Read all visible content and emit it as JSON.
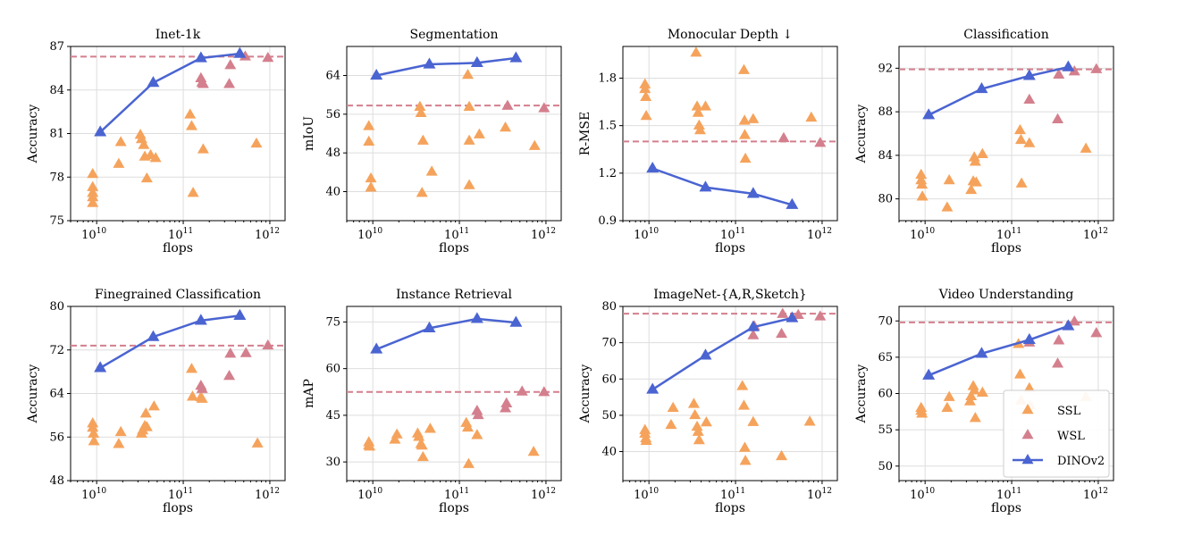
{
  "colors": {
    "ssl": "#f5a35c",
    "wsl": "#d47f8d",
    "dino": "#4a64d1",
    "baseline": "#d47f8d",
    "grid": "#dddddd"
  },
  "legend": {
    "entries": [
      "SSL",
      "WSL",
      "DINOv2"
    ],
    "placement": "lower-right of last panel"
  },
  "chart_data": [
    {
      "type": "scatter",
      "title": "Inet-1k",
      "xlabel": "flops",
      "ylabel": "Accuracy",
      "xscale": "log",
      "xlim": [
        5000000000.0,
        1500000000000.0
      ],
      "ylim": [
        75,
        87
      ],
      "yticks": [
        75,
        78,
        81,
        84,
        87
      ],
      "ytick_labels": [
        "75",
        "78",
        "81",
        "84",
        "87"
      ],
      "baseline": 86.3,
      "dino": {
        "x": [
          11000000000.0,
          45000000000.0,
          160000000000.0,
          450000000000.0
        ],
        "y": [
          81.1,
          84.5,
          86.2,
          86.5
        ]
      },
      "ssl": {
        "x": [
          9000000000.0,
          9000000000.0,
          9000000000.0,
          9000000000.0,
          9000000000.0,
          18000000000.0,
          19000000000.0,
          32000000000.0,
          33000000000.0,
          35000000000.0,
          36000000000.0,
          38000000000.0,
          42000000000.0,
          48000000000.0,
          120000000000.0,
          125000000000.0,
          130000000000.0,
          170000000000.0,
          700000000000.0
        ],
        "y": [
          78.2,
          77.3,
          76.9,
          76.6,
          76.2,
          78.9,
          80.4,
          80.9,
          80.6,
          80.2,
          79.4,
          77.9,
          79.5,
          79.3,
          82.3,
          81.5,
          76.9,
          79.9,
          80.3
        ]
      },
      "wsl": {
        "x": [
          160000000000.0,
          165000000000.0,
          170000000000.0,
          340000000000.0,
          350000000000.0,
          520000000000.0,
          950000000000.0
        ],
        "y": [
          84.8,
          84.5,
          84.4,
          84.4,
          85.7,
          86.3,
          86.2
        ]
      }
    },
    {
      "type": "scatter",
      "title": "Segmentation",
      "xlabel": "flops",
      "ylabel": "mIoU",
      "xscale": "log",
      "xlim": [
        5000000000.0,
        1500000000000.0
      ],
      "ylim": [
        34,
        70
      ],
      "yticks": [
        40,
        48,
        56,
        64
      ],
      "ytick_labels": [
        "40",
        "48",
        "56",
        "64"
      ],
      "baseline": 57.8,
      "dino": {
        "x": [
          11000000000.0,
          45000000000.0,
          160000000000.0,
          450000000000.0
        ],
        "y": [
          64.0,
          66.3,
          66.6,
          67.6
        ]
      },
      "ssl": {
        "x": [
          9000000000.0,
          9000000000.0,
          9500000000.0,
          9500000000.0,
          35000000000.0,
          36000000000.0,
          38000000000.0,
          37000000000.0,
          48000000000.0,
          125000000000.0,
          130000000000.0,
          130000000000.0,
          130000000000.0,
          170000000000.0,
          340000000000.0,
          740000000000.0
        ],
        "y": [
          53.5,
          50.3,
          42.7,
          40.8,
          57.5,
          56.2,
          50.5,
          39.7,
          44.1,
          64.1,
          57.5,
          50.5,
          41.3,
          51.8,
          53.2,
          49.4
        ]
      },
      "wsl": {
        "x": [
          360000000000.0,
          950000000000.0
        ],
        "y": [
          57.7,
          57.2
        ]
      }
    },
    {
      "type": "scatter",
      "title": "Monocular Depth ↓",
      "xlabel": "flops",
      "ylabel": "R-MSE",
      "xscale": "log",
      "xlim": [
        5000000000.0,
        1500000000000.0
      ],
      "ylim": [
        0.9,
        2.0
      ],
      "yticks": [
        0.9,
        1.2,
        1.5,
        1.8
      ],
      "ytick_labels": [
        "0.9",
        "1.2",
        "1.5",
        "1.8"
      ],
      "baseline": 1.4,
      "dino": {
        "x": [
          11000000000.0,
          45000000000.0,
          160000000000.0,
          450000000000.0
        ],
        "y": [
          1.23,
          1.11,
          1.07,
          1.0
        ]
      },
      "ssl": {
        "x": [
          9000000000.0,
          9000000000.0,
          9200000000.0,
          9300000000.0,
          35000000000.0,
          36000000000.0,
          37000000000.0,
          38000000000.0,
          39000000000.0,
          45000000000.0,
          125000000000.0,
          127000000000.0,
          128000000000.0,
          130000000000.0,
          160000000000.0,
          750000000000.0
        ],
        "y": [
          1.76,
          1.73,
          1.68,
          1.56,
          1.96,
          1.62,
          1.58,
          1.5,
          1.47,
          1.62,
          1.85,
          1.53,
          1.44,
          1.29,
          1.54,
          1.55
        ]
      },
      "wsl": {
        "x": [
          360000000000.0,
          950000000000.0
        ],
        "y": [
          1.42,
          1.39
        ]
      }
    },
    {
      "type": "scatter",
      "title": "Classification",
      "xlabel": "flops",
      "ylabel": "Accuracy",
      "xscale": "log",
      "xlim": [
        5000000000.0,
        1500000000000.0
      ],
      "ylim": [
        78,
        94
      ],
      "yticks": [
        80,
        84,
        88,
        92
      ],
      "ytick_labels": [
        "80",
        "84",
        "88",
        "92"
      ],
      "baseline": 91.9,
      "dino": {
        "x": [
          11000000000.0,
          45000000000.0,
          160000000000.0,
          450000000000.0
        ],
        "y": [
          87.7,
          90.1,
          91.3,
          92.1
        ]
      },
      "ssl": {
        "x": [
          9000000000.0,
          9000000000.0,
          9200000000.0,
          9300000000.0,
          18000000000.0,
          19000000000.0,
          34000000000.0,
          36000000000.0,
          37000000000.0,
          38000000000.0,
          39000000000.0,
          46000000000.0,
          125000000000.0,
          128000000000.0,
          130000000000.0,
          160000000000.0,
          720000000000.0
        ],
        "y": [
          82.2,
          81.7,
          81.3,
          80.2,
          79.2,
          81.7,
          80.8,
          81.6,
          83.8,
          83.4,
          81.5,
          84.1,
          86.3,
          85.4,
          81.4,
          85.1,
          84.6
        ]
      },
      "wsl": {
        "x": [
          160000000000.0,
          340000000000.0,
          350000000000.0,
          530000000000.0,
          950000000000.0
        ],
        "y": [
          89.1,
          87.3,
          91.4,
          91.7,
          91.9
        ]
      }
    },
    {
      "type": "scatter",
      "title": "Finegrained Classification",
      "xlabel": "flops",
      "ylabel": "Accuracy",
      "xscale": "log",
      "xlim": [
        5000000000.0,
        1500000000000.0
      ],
      "ylim": [
        48,
        80
      ],
      "yticks": [
        48,
        56,
        64,
        72,
        80
      ],
      "ytick_labels": [
        "48",
        "56",
        "64",
        "72",
        "80"
      ],
      "baseline": 72.8,
      "dino": {
        "x": [
          11000000000.0,
          45000000000.0,
          160000000000.0,
          450000000000.0
        ],
        "y": [
          68.7,
          74.4,
          77.4,
          78.3
        ]
      },
      "ssl": {
        "x": [
          9000000000.0,
          9000000000.0,
          9200000000.0,
          9300000000.0,
          18000000000.0,
          19000000000.0,
          33000000000.0,
          34000000000.0,
          36000000000.0,
          37000000000.0,
          38000000000.0,
          46000000000.0,
          125000000000.0,
          128000000000.0,
          160000000000.0,
          165000000000.0,
          720000000000.0
        ],
        "y": [
          58.5,
          57.7,
          56.6,
          55.2,
          54.7,
          56.9,
          56.6,
          57.2,
          58.0,
          60.3,
          57.8,
          61.6,
          68.5,
          63.4,
          63.3,
          63.0,
          54.8
        ]
      },
      "wsl": {
        "x": [
          160000000000.0,
          165000000000.0,
          340000000000.0,
          350000000000.0,
          530000000000.0,
          950000000000.0
        ],
        "y": [
          65.4,
          64.8,
          67.2,
          71.3,
          71.4,
          72.8
        ]
      }
    },
    {
      "type": "scatter",
      "title": "Instance Retrieval",
      "xlabel": "flops",
      "ylabel": "mAP",
      "xscale": "log",
      "xlim": [
        5000000000.0,
        1500000000000.0
      ],
      "ylim": [
        24,
        80
      ],
      "yticks": [
        30,
        45,
        60,
        75
      ],
      "ytick_labels": [
        "30",
        "45",
        "60",
        "75"
      ],
      "baseline": 52.5,
      "dino": {
        "x": [
          11000000000.0,
          45000000000.0,
          160000000000.0,
          450000000000.0
        ],
        "y": [
          66.2,
          73.0,
          76.0,
          74.8
        ]
      },
      "ssl": {
        "x": [
          9000000000.0,
          9000000000.0,
          9200000000.0,
          18000000000.0,
          19000000000.0,
          33000000000.0,
          34000000000.0,
          36000000000.0,
          37000000000.0,
          38000000000.0,
          46000000000.0,
          120000000000.0,
          125000000000.0,
          128000000000.0,
          160000000000.0,
          720000000000.0
        ],
        "y": [
          36.3,
          35.3,
          34.9,
          37.1,
          38.8,
          39.1,
          38.0,
          35.7,
          35.2,
          31.5,
          40.6,
          42.5,
          41.0,
          29.3,
          38.6,
          33.2
        ]
      },
      "wsl": {
        "x": [
          160000000000.0,
          165000000000.0,
          340000000000.0,
          350000000000.0,
          530000000000.0,
          950000000000.0
        ],
        "y": [
          46.4,
          45.0,
          47.2,
          48.8,
          52.6,
          52.4
        ]
      }
    },
    {
      "type": "scatter",
      "title": "ImageNet-{A,R,Sketch}",
      "xlabel": "flops",
      "ylabel": "Accuracy",
      "xscale": "log",
      "xlim": [
        5000000000.0,
        1500000000000.0
      ],
      "ylim": [
        32,
        80
      ],
      "yticks": [
        40,
        50,
        60,
        70,
        80
      ],
      "ytick_labels": [
        "40",
        "50",
        "60",
        "70",
        "80"
      ],
      "baseline": 78.0,
      "dino": {
        "x": [
          11000000000.0,
          45000000000.0,
          160000000000.0,
          450000000000.0
        ],
        "y": [
          57.1,
          66.5,
          74.3,
          76.8
        ]
      },
      "ssl": {
        "x": [
          9000000000.0,
          9000000000.0,
          9200000000.0,
          9300000000.0,
          18000000000.0,
          19000000000.0,
          33000000000.0,
          34000000000.0,
          36000000000.0,
          37000000000.0,
          38000000000.0,
          46000000000.0,
          120000000000.0,
          125000000000.0,
          128000000000.0,
          130000000000.0,
          160000000000.0,
          340000000000.0,
          720000000000.0
        ],
        "y": [
          45.9,
          44.9,
          43.6,
          42.9,
          47.3,
          52.0,
          53.1,
          50.0,
          46.8,
          45.4,
          43.1,
          48.0,
          58.0,
          52.6,
          41.0,
          37.4,
          48.1,
          38.7,
          48.2
        ]
      },
      "wsl": {
        "x": [
          160000000000.0,
          165000000000.0,
          340000000000.0,
          350000000000.0,
          530000000000.0,
          950000000000.0
        ],
        "y": [
          72.0,
          74.5,
          72.4,
          77.9,
          77.6,
          77.2
        ]
      }
    },
    {
      "type": "scatter",
      "title": "Video Understanding",
      "xlabel": "flops",
      "ylabel": "Accuracy",
      "xscale": "log",
      "xlim": [
        5000000000.0,
        1500000000000.0
      ],
      "ylim": [
        48,
        72
      ],
      "yticks": [
        50,
        55,
        60,
        65,
        70
      ],
      "ytick_labels": [
        "50",
        "55",
        "60",
        "65",
        "70"
      ],
      "baseline": 69.8,
      "dino": {
        "x": [
          11000000000.0,
          45000000000.0,
          160000000000.0,
          450000000000.0
        ],
        "y": [
          62.5,
          65.5,
          67.4,
          69.3
        ]
      },
      "ssl": {
        "x": [
          9000000000.0,
          9000000000.0,
          9200000000.0,
          18000000000.0,
          19000000000.0,
          33000000000.0,
          34000000000.0,
          36000000000.0,
          37000000000.0,
          38000000000.0,
          46000000000.0,
          120000000000.0,
          125000000000.0,
          128000000000.0,
          160000000000.0,
          165000000000.0,
          720000000000.0
        ],
        "y": [
          58.0,
          57.6,
          57.2,
          58.0,
          59.5,
          58.9,
          59.6,
          61.0,
          60.4,
          56.6,
          60.1,
          66.8,
          62.6,
          59.0,
          60.7,
          58.3,
          59.5
        ]
      },
      "wsl": {
        "x": [
          160000000000.0,
          340000000000.0,
          350000000000.0,
          530000000000.0,
          950000000000.0
        ],
        "y": [
          67.0,
          64.1,
          67.3,
          69.9,
          68.3
        ]
      }
    }
  ]
}
